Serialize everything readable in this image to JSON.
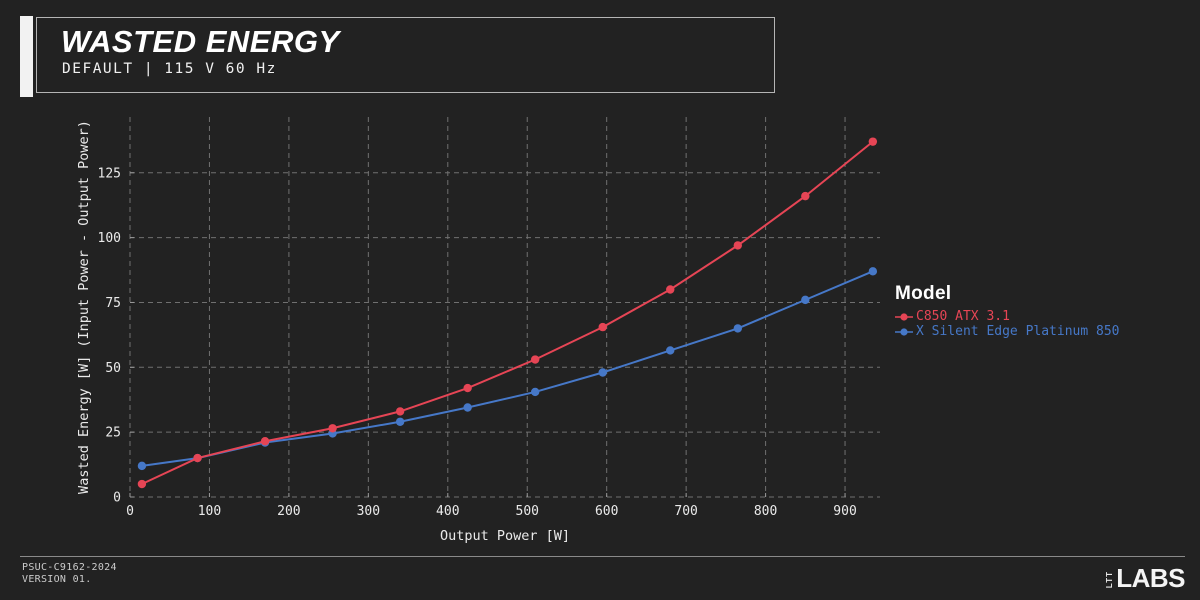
{
  "page": {
    "background": "#222222",
    "accent_color": "#f2f2f2"
  },
  "header": {
    "title": "WASTED ENERGY",
    "subtitle": "DEFAULT | 115 V 60 Hz"
  },
  "footer": {
    "doc_id": "PSUC-C9162-2024",
    "version": "VERSION 01.",
    "logo_vertical": "LTT",
    "logo_text": "LABS"
  },
  "chart_data": {
    "type": "line",
    "title": "WASTED ENERGY",
    "xlabel": "Output Power [W]",
    "ylabel": "Wasted Energy [W] (Input Power - Output Power)",
    "legend_title": "Model",
    "legend_position": "right",
    "grid": "dashed",
    "grid_color": "#707070",
    "tick_color": "#9a9a9a",
    "text_color": "#eaeaea",
    "xlim": [
      0,
      944
    ],
    "ylim": [
      0,
      146.5
    ],
    "xticks": [
      0,
      100,
      200,
      300,
      400,
      500,
      600,
      700,
      800,
      900
    ],
    "yticks": [
      0,
      25,
      50,
      75,
      100,
      125
    ],
    "x": [
      15,
      85,
      170,
      255,
      340,
      425,
      510,
      595,
      680,
      765,
      850,
      935
    ],
    "series": [
      {
        "name": "C850 ATX 3.1",
        "color": "#e64555",
        "values": [
          5,
          15,
          21.5,
          26.5,
          33,
          42,
          53,
          65.5,
          80,
          97,
          116,
          137
        ]
      },
      {
        "name": "X Silent Edge Platinum 850",
        "color": "#4678c8",
        "values": [
          12,
          15,
          21,
          24.5,
          29,
          34.5,
          40.5,
          48,
          56.5,
          65,
          76,
          87
        ]
      }
    ]
  }
}
